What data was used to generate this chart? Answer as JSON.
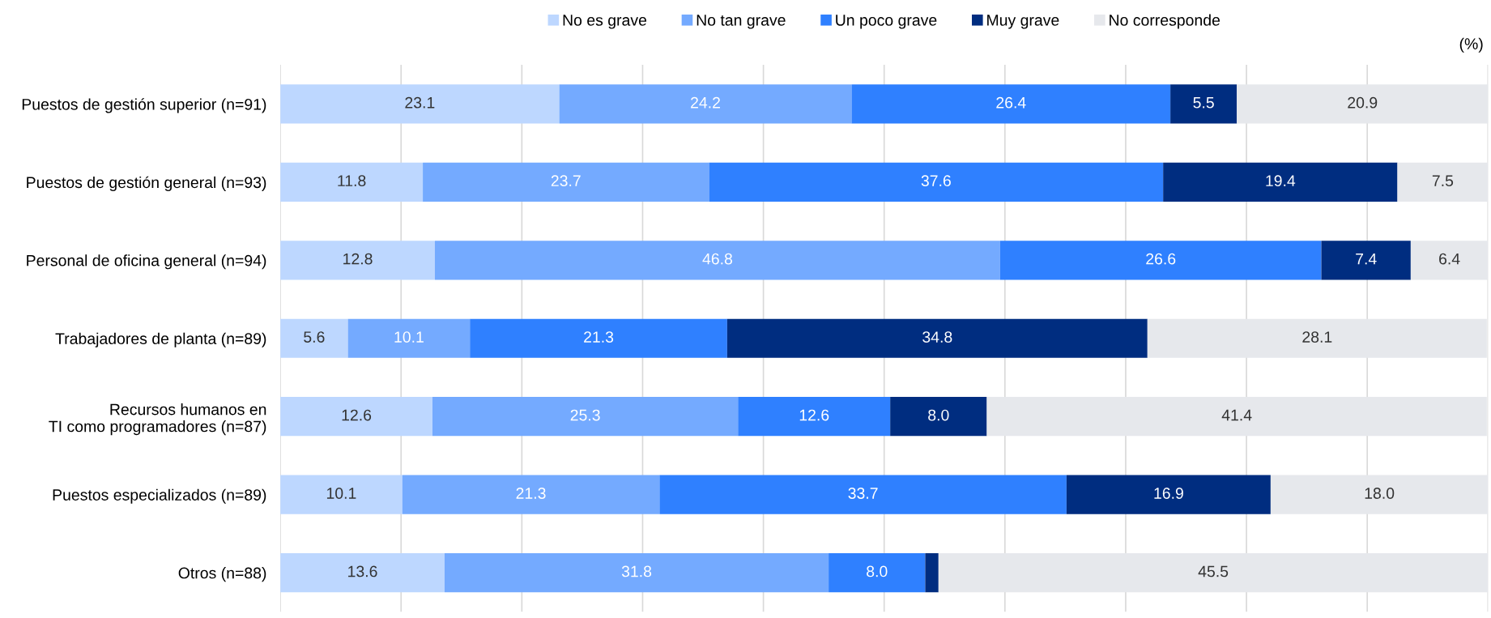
{
  "chart_data": {
    "type": "bar",
    "orientation": "horizontal",
    "stacked": true,
    "categories": [
      "Puestos de gestión superior (n=91)",
      "Puestos de gestión general (n=93)",
      "Personal de oficina general (n=94)",
      "Trabajadores de planta (n=89)",
      "Recursos humanos en\nTI como programadores (n=87)",
      "Puestos especializados (n=89)",
      "Otros (n=88)"
    ],
    "series": [
      {
        "name": "No es grave",
        "color": "#bdd7ff",
        "values": [
          23.1,
          11.8,
          12.8,
          5.6,
          12.6,
          10.1,
          13.6
        ],
        "value_labels": [
          "23.1",
          "11.8",
          "12.8",
          "5.6",
          "12.6",
          "10.1",
          "13.6"
        ]
      },
      {
        "name": "No tan grave",
        "color": "#74aaff",
        "values": [
          24.2,
          23.7,
          46.8,
          10.1,
          25.3,
          21.3,
          31.8
        ],
        "value_labels": [
          "24.2",
          "23.7",
          "46.8",
          "10.1",
          "25.3",
          "21.3",
          "31.8"
        ]
      },
      {
        "name": "Un poco grave",
        "color": "#2f80ff",
        "values": [
          26.4,
          37.6,
          26.6,
          21.3,
          12.6,
          33.7,
          8.0
        ],
        "value_labels": [
          "26.4",
          "37.6",
          "26.6",
          "21.3",
          "12.6",
          "33.7",
          "8.0"
        ]
      },
      {
        "name": "Muy grave",
        "color": "#002d80",
        "values": [
          5.5,
          19.4,
          7.4,
          34.8,
          8.0,
          16.9,
          1.1
        ],
        "value_labels": [
          "5.5",
          "19.4",
          "7.4",
          "34.8",
          "8.0",
          "16.9",
          null
        ]
      },
      {
        "name": "No corresponde",
        "color": "#e6e8ec",
        "values": [
          20.9,
          7.5,
          6.4,
          28.1,
          41.4,
          18.0,
          45.5
        ],
        "value_labels": [
          "20.9",
          "7.5",
          "6.4",
          "28.1",
          "41.4",
          "18.0",
          "45.5"
        ]
      }
    ],
    "xlim": [
      0,
      100
    ],
    "xticks": [
      {
        "value": 0,
        "label": null
      },
      {
        "value": 10,
        "label": null
      },
      {
        "value": 20,
        "label": null
      },
      {
        "value": 30,
        "label": null
      },
      {
        "value": 40,
        "label": null
      },
      {
        "value": 50,
        "label": null
      },
      {
        "value": 60,
        "label": null
      },
      {
        "value": 70,
        "label": null
      },
      {
        "value": 80,
        "label": null
      },
      {
        "value": 90,
        "label": null
      },
      {
        "value": 100,
        "label": null
      }
    ],
    "tick_labels": "y",
    "grid": "x",
    "legend": "top",
    "annotations": [
      "(%)"
    ]
  }
}
